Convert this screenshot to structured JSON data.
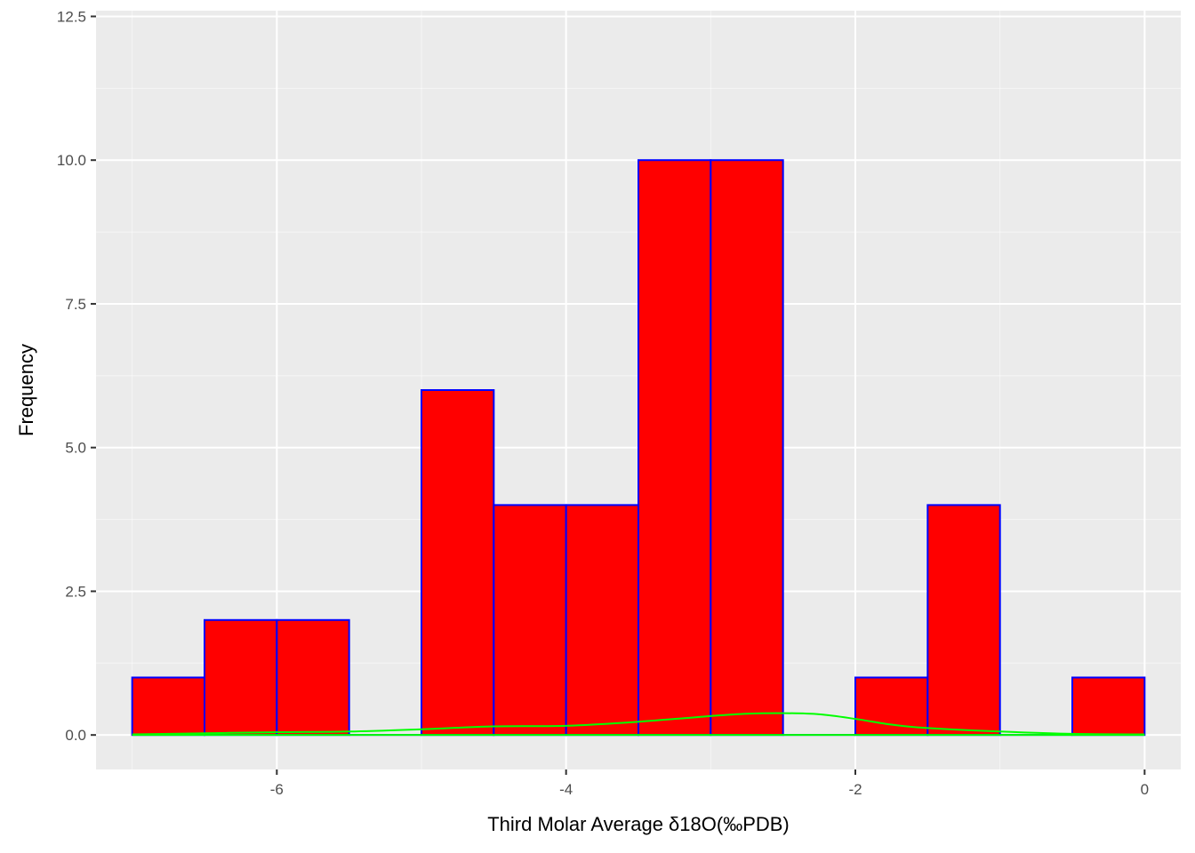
{
  "chart_data": {
    "type": "bar",
    "subtype": "histogram",
    "xlabel": "Third Molar Average δ18O(‰PDB)",
    "ylabel": "Frequency",
    "xlim": [
      -7.25,
      0.25
    ],
    "ylim": [
      -0.6,
      12.6
    ],
    "x_ticks": [
      -6,
      -4,
      -2,
      0
    ],
    "y_ticks": [
      0.0,
      2.5,
      5.0,
      7.5,
      10.0,
      12.5
    ],
    "x_tick_labels": [
      "-6",
      "-4",
      "-2",
      "0"
    ],
    "y_tick_labels": [
      "0.0",
      "2.5",
      "5.0",
      "7.5",
      "10.0",
      "12.5"
    ],
    "grid": true,
    "bins": [
      {
        "x0": -7.0,
        "x1": -6.5,
        "count": 1
      },
      {
        "x0": -6.5,
        "x1": -6.0,
        "count": 2
      },
      {
        "x0": -6.0,
        "x1": -5.5,
        "count": 2
      },
      {
        "x0": -5.5,
        "x1": -5.0,
        "count": 0
      },
      {
        "x0": -5.0,
        "x1": -4.5,
        "count": 6
      },
      {
        "x0": -4.5,
        "x1": -4.0,
        "count": 4
      },
      {
        "x0": -4.0,
        "x1": -3.5,
        "count": 4
      },
      {
        "x0": -3.5,
        "x1": -3.0,
        "count": 10
      },
      {
        "x0": -3.0,
        "x1": -2.5,
        "count": 10
      },
      {
        "x0": -2.5,
        "x1": -2.0,
        "count": 0
      },
      {
        "x0": -2.0,
        "x1": -1.5,
        "count": 1
      },
      {
        "x0": -1.5,
        "x1": -1.0,
        "count": 4
      },
      {
        "x0": -1.0,
        "x1": -0.5,
        "count": 0
      },
      {
        "x0": -0.5,
        "x1": 0.0,
        "count": 1
      }
    ],
    "density_curve": {
      "x": [
        -7.0,
        -6.5,
        -6.0,
        -5.5,
        -5.0,
        -4.5,
        -4.0,
        -3.5,
        -3.0,
        -2.75,
        -2.5,
        -2.25,
        -2.0,
        -1.75,
        -1.5,
        -1.0,
        -0.5,
        0.0
      ],
      "y": [
        0.01,
        0.03,
        0.05,
        0.06,
        0.1,
        0.15,
        0.16,
        0.23,
        0.33,
        0.37,
        0.38,
        0.36,
        0.28,
        0.18,
        0.12,
        0.06,
        0.02,
        0.01
      ]
    },
    "colors": {
      "panel_background": "#ebebeb",
      "grid_major": "#ffffff",
      "bar_fill": "#ff0000",
      "bar_outline": "#0000ff",
      "density_line": "#00ff00",
      "tick_text": "#4d4d4d",
      "tick_mark": "#333333",
      "axis_title": "#000000"
    }
  }
}
